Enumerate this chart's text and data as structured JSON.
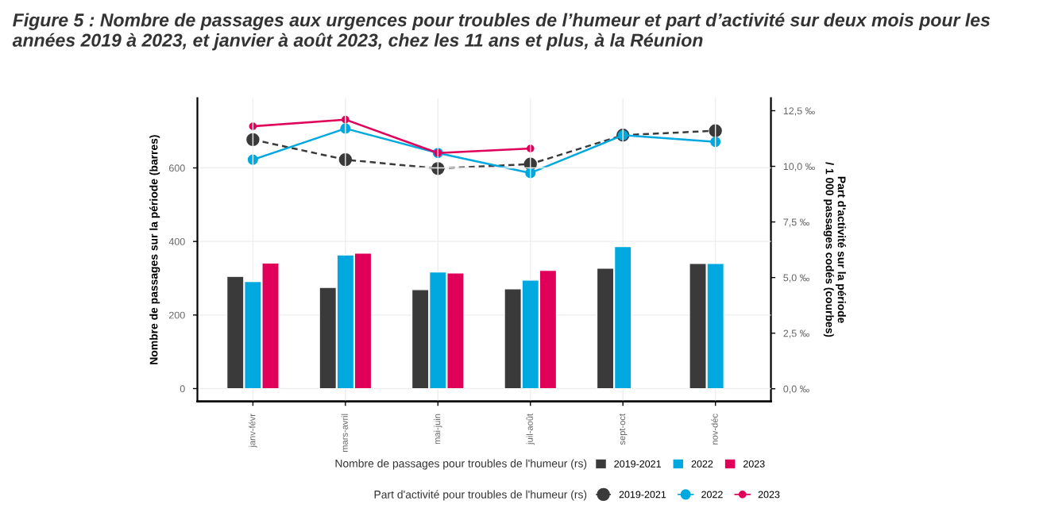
{
  "chart_data": {
    "type": "bar",
    "title": "Figure 5 : Nombre de passages aux urgences pour troubles de l’humeur et part d’activité sur deux mois pour les années 2019 à 2023, et janvier à août 2023, chez les 11 ans et plus, à la Réunion",
    "ylabel": "Nombre de passages sur la période (barres)",
    "y2label": "Part d'activité sur la période\n/ 1 000 passages codés (courbes)",
    "legend_title": [
      "Nombre de passages pour troubles de l'humeur (rs)",
      "Part d'activité pour troubles de l'humeur (rs)"
    ],
    "categories": [
      "janv-févr",
      "mars-avril",
      "mai-juin",
      "juil-août",
      "sept-oct",
      "nov-déc"
    ],
    "series": [
      {
        "name": "2019-2021",
        "color": "#3a3a3a",
        "values": [
          305,
          275,
          269,
          271,
          327,
          340
        ]
      },
      {
        "name": "2022",
        "color": "#00a8e0",
        "values": [
          291,
          363,
          317,
          295,
          386,
          340
        ]
      },
      {
        "name": "2023",
        "color": "#e0005a",
        "values": [
          341,
          368,
          314,
          321,
          null,
          null
        ]
      },
      {
        "name": "2019-2021",
        "type": "line",
        "axis": "y2",
        "color": "#3a3a3a",
        "line_style": "dashed",
        "marker": "circle",
        "values": [
          11.2,
          10.3,
          9.9,
          10.1,
          11.4,
          11.6
        ]
      },
      {
        "name": "2022",
        "type": "line",
        "axis": "y2",
        "color": "#00a8e0",
        "line_style": "solid",
        "marker": "circle",
        "values": [
          10.3,
          11.7,
          10.6,
          9.7,
          11.4,
          11.1
        ]
      },
      {
        "name": "2023",
        "type": "line",
        "axis": "y2",
        "color": "#e0005a",
        "line_style": "solid",
        "marker": "circle",
        "values": [
          11.8,
          12.1,
          10.6,
          10.8,
          null,
          null
        ]
      }
    ],
    "ylim": [
      -35,
      790
    ],
    "yticks": [
      0,
      200,
      400,
      600
    ],
    "y2lim": [
      -0.57,
      13.07
    ],
    "y2ticks": [
      {
        "value": 0,
        "label": "0,0 ‰"
      },
      {
        "value": 2.5,
        "label": "2,5 ‰"
      },
      {
        "value": 5,
        "label": "5,0 ‰"
      },
      {
        "value": 7.5,
        "label": "7,5 ‰"
      },
      {
        "value": 10,
        "label": "10,0 ‰"
      },
      {
        "value": 12.5,
        "label": "12,5 ‰"
      }
    ],
    "grid": true,
    "legend": "bottom"
  }
}
